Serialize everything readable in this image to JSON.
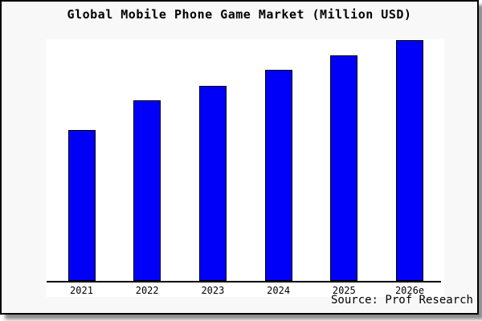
{
  "figure": {
    "title": "Global Mobile Phone Game Market (Million USD)",
    "source_credit": "Source: Prof Research",
    "background_color": "#f8f8f8",
    "plot_background_color": "#ffffff",
    "frame_border_color": "#000000"
  },
  "chart_data": {
    "type": "bar",
    "title": "Global Mobile Phone Game Market (Million USD)",
    "categories": [
      "2021",
      "2022",
      "2023",
      "2024",
      "2025",
      "2026e"
    ],
    "series": [
      {
        "name": "Global Mobile Phone Game Market (Million USD)",
        "values": [
          188,
          225,
          243,
          263,
          281,
          300
        ]
      }
    ],
    "values_unit": "relative bar heights in px; chart displays no numeric y-axis",
    "value_labels_shown": false,
    "xlabel": "",
    "ylabel": "",
    "y_axis_ticks": "none",
    "grid": false,
    "legend": "none",
    "bar_fill_color": "#0000f8",
    "bar_border_color": "#000000",
    "annotation": "Source: Prof Research"
  }
}
